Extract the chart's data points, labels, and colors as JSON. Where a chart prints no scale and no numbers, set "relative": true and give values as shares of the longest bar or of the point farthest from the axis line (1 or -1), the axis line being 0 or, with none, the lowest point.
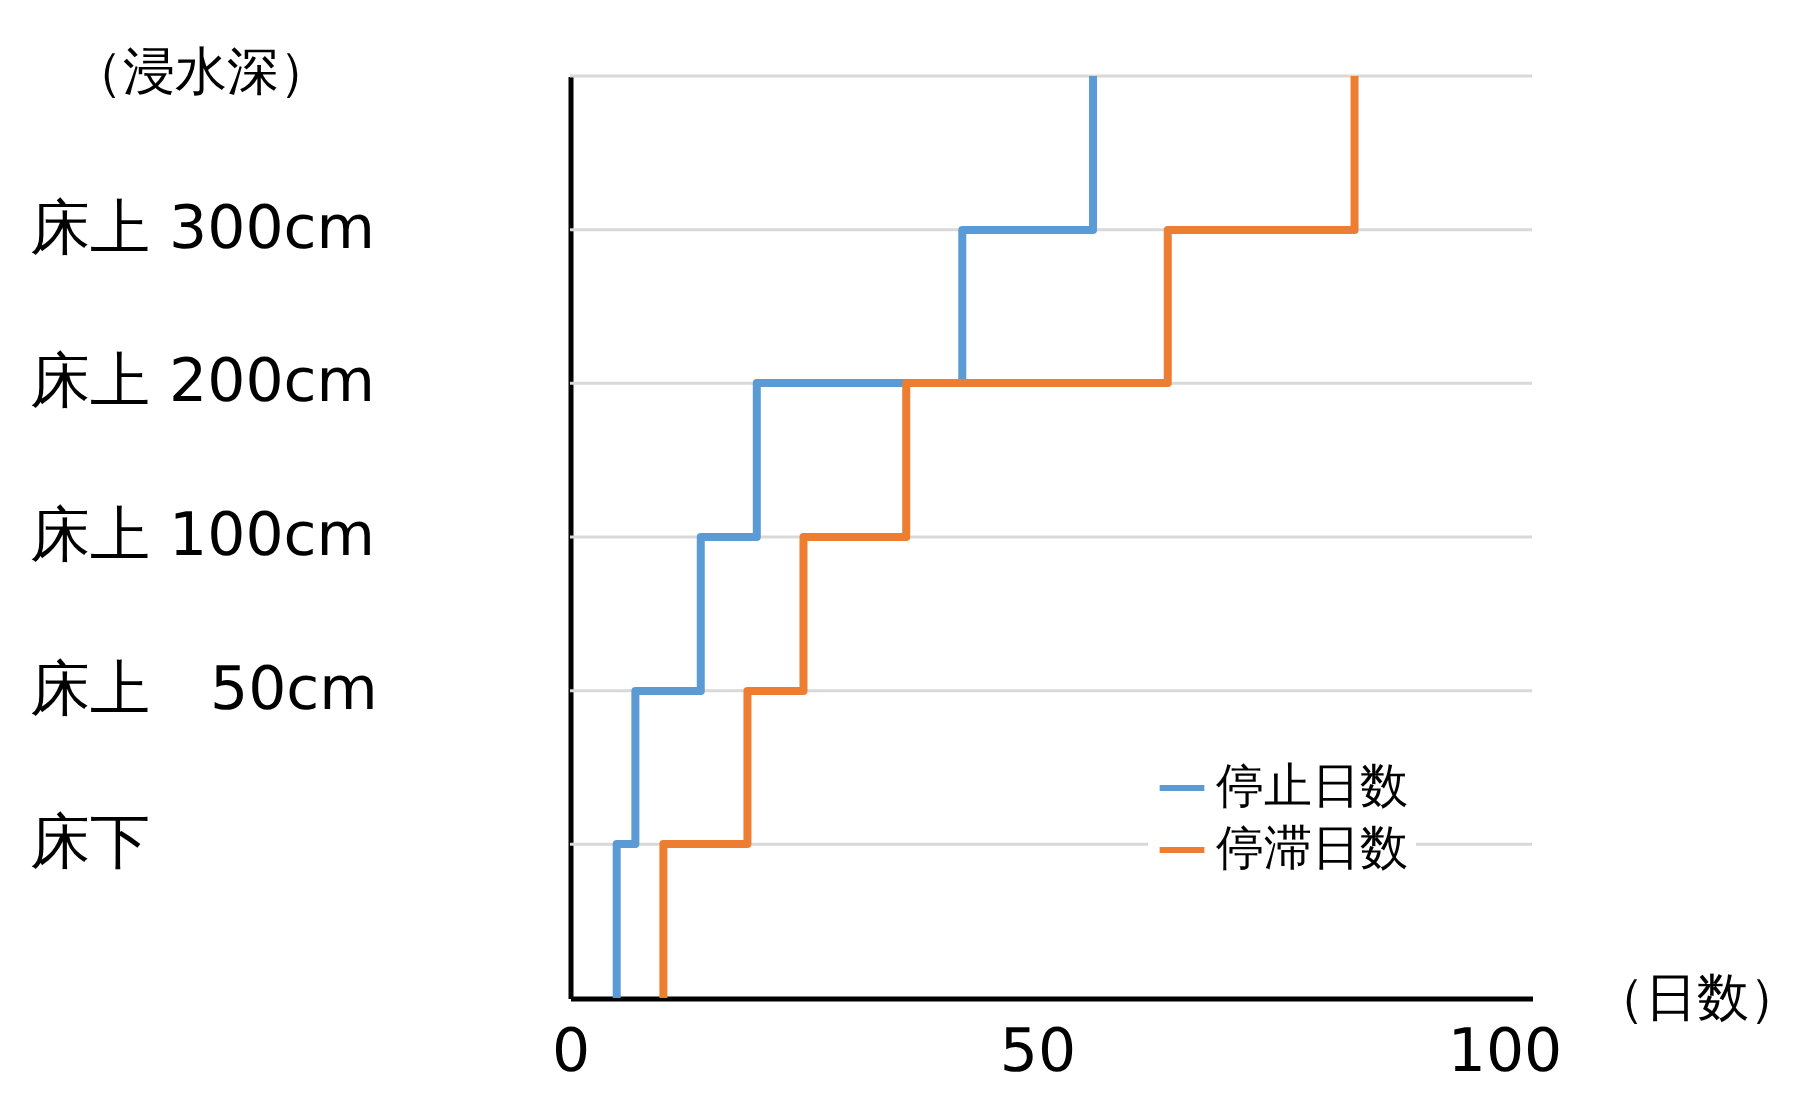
{
  "chart_data": {
    "type": "step",
    "xlabel": "（日数）",
    "ylabel": "（浸水深）",
    "relative": true,
    "xlim": [
      0,
      103
    ],
    "xticks": [
      0,
      50,
      100
    ],
    "annotations": [
      "床上 300cm",
      "床上 200cm",
      "床上 100cm",
      "床上　50cm",
      "床下"
    ],
    "grid": "y",
    "legend": "bottom right",
    "line_style": "solid",
    "series": [
      {
        "name": "停止日数",
        "color": "#5b9bd5",
        "x": [
          5,
          5,
          7,
          14,
          20,
          42,
          56
        ],
        "values": [
          0,
          0.167,
          0.333,
          0.5,
          0.667,
          0.833,
          1
        ]
      },
      {
        "name": "停滞日数",
        "color": "#ed7d31",
        "x": [
          10,
          10,
          19,
          25,
          36,
          64,
          84
        ],
        "values": [
          0,
          0.167,
          0.333,
          0.5,
          0.667,
          0.833,
          1
        ]
      }
    ]
  }
}
